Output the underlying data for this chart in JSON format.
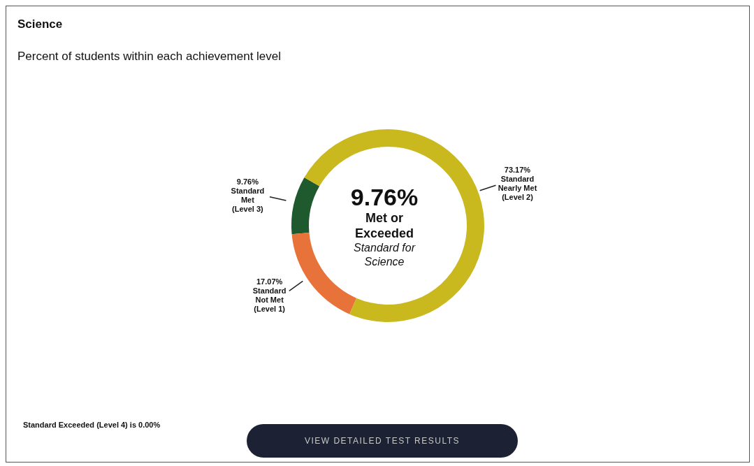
{
  "chart_data": {
    "type": "donut",
    "title": "Science",
    "subtitle": "Percent of students within each achievement level",
    "categories": [
      "Standard Met (Level 3)",
      "Standard Not Met (Level 1)",
      "Standard Nearly Met (Level 2)"
    ],
    "values": [
      9.76,
      17.07,
      73.17
    ],
    "colors": [
      "#1f5a2e",
      "#e8733a",
      "#c9b81e"
    ],
    "value_labels": [
      "9.76%",
      "17.07%",
      "73.17%"
    ],
    "annotations": [
      "9.76%",
      "Met or Exceeded",
      "Standard for Science",
      "Standard Exceeded (Level 4) is 0.00%",
      "VIEW DETAILED TEST RESULTS"
    ]
  }
}
